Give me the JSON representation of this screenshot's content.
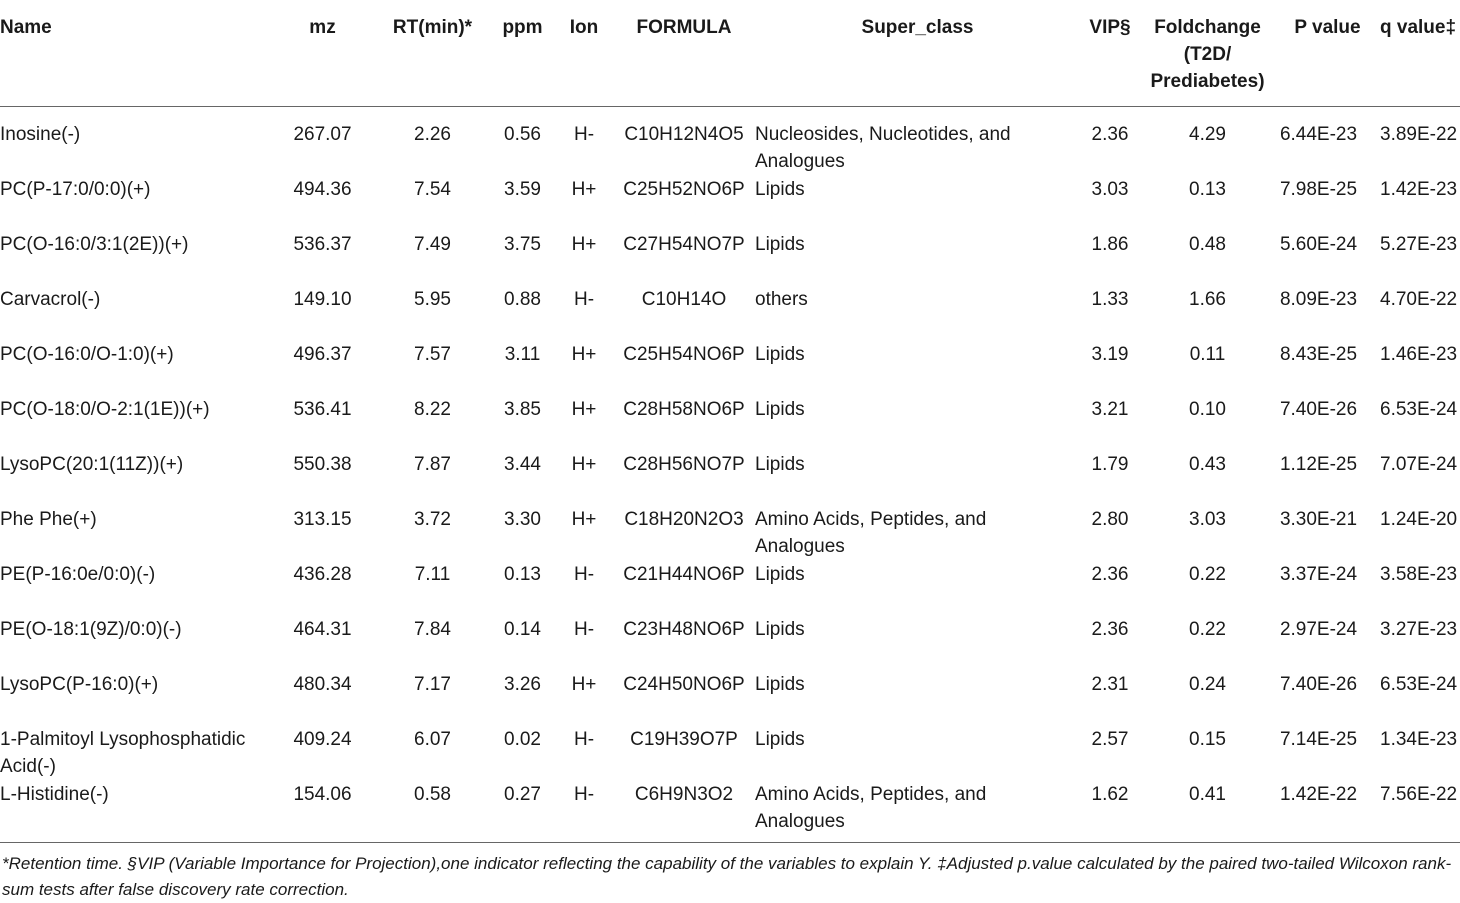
{
  "table": {
    "headers": {
      "name": "Name",
      "mz": "mz",
      "rt": "RT(min)*",
      "ppm": "ppm",
      "ion": "Ion",
      "formula": "FORMULA",
      "super_class": "Super_class",
      "vip": "VIP§",
      "foldchange": "Foldchange (T2D/ Prediabetes)",
      "p_value": "P value",
      "q_value": "q value‡"
    },
    "rows": [
      {
        "name": "Inosine(-)",
        "mz": "267.07",
        "rt": "2.26",
        "ppm": "0.56",
        "ion": "H-",
        "formula": "C10H12N4O5",
        "super_class": "Nucleosides, Nucleotides, and Analogues",
        "vip": "2.36",
        "foldchange": "4.29",
        "p_value": "6.44E-23",
        "q_value": "3.89E-22"
      },
      {
        "name": "PC(P-17:0/0:0)(+)",
        "mz": "494.36",
        "rt": "7.54",
        "ppm": "3.59",
        "ion": "H+",
        "formula": "C25H52NO6P",
        "super_class": "Lipids",
        "vip": "3.03",
        "foldchange": "0.13",
        "p_value": "7.98E-25",
        "q_value": "1.42E-23"
      },
      {
        "name": "PC(O-16:0/3:1(2E))(+)",
        "mz": "536.37",
        "rt": "7.49",
        "ppm": "3.75",
        "ion": "H+",
        "formula": "C27H54NO7P",
        "super_class": "Lipids",
        "vip": "1.86",
        "foldchange": "0.48",
        "p_value": "5.60E-24",
        "q_value": "5.27E-23"
      },
      {
        "name": "Carvacrol(-)",
        "mz": "149.10",
        "rt": "5.95",
        "ppm": "0.88",
        "ion": "H-",
        "formula": "C10H14O",
        "super_class": "others",
        "vip": "1.33",
        "foldchange": "1.66",
        "p_value": "8.09E-23",
        "q_value": "4.70E-22"
      },
      {
        "name": "PC(O-16:0/O-1:0)(+)",
        "mz": "496.37",
        "rt": "7.57",
        "ppm": "3.11",
        "ion": "H+",
        "formula": "C25H54NO6P",
        "super_class": "Lipids",
        "vip": "3.19",
        "foldchange": "0.11",
        "p_value": "8.43E-25",
        "q_value": "1.46E-23"
      },
      {
        "name": "PC(O-18:0/O-2:1(1E))(+)",
        "mz": "536.41",
        "rt": "8.22",
        "ppm": "3.85",
        "ion": "H+",
        "formula": "C28H58NO6P",
        "super_class": "Lipids",
        "vip": "3.21",
        "foldchange": "0.10",
        "p_value": "7.40E-26",
        "q_value": "6.53E-24"
      },
      {
        "name": "LysoPC(20:1(11Z))(+)",
        "mz": "550.38",
        "rt": "7.87",
        "ppm": "3.44",
        "ion": "H+",
        "formula": "C28H56NO7P",
        "super_class": "Lipids",
        "vip": "1.79",
        "foldchange": "0.43",
        "p_value": "1.12E-25",
        "q_value": "7.07E-24"
      },
      {
        "name": "Phe Phe(+)",
        "mz": "313.15",
        "rt": "3.72",
        "ppm": "3.30",
        "ion": "H+",
        "formula": "C18H20N2O3",
        "super_class": "Amino Acids, Peptides, and Analogues",
        "vip": "2.80",
        "foldchange": "3.03",
        "p_value": "3.30E-21",
        "q_value": "1.24E-20"
      },
      {
        "name": "PE(P-16:0e/0:0)(-)",
        "mz": "436.28",
        "rt": "7.11",
        "ppm": "0.13",
        "ion": "H-",
        "formula": "C21H44NO6P",
        "super_class": "Lipids",
        "vip": "2.36",
        "foldchange": "0.22",
        "p_value": "3.37E-24",
        "q_value": "3.58E-23"
      },
      {
        "name": "PE(O-18:1(9Z)/0:0)(-)",
        "mz": "464.31",
        "rt": "7.84",
        "ppm": "0.14",
        "ion": "H-",
        "formula": "C23H48NO6P",
        "super_class": "Lipids",
        "vip": "2.36",
        "foldchange": "0.22",
        "p_value": "2.97E-24",
        "q_value": "3.27E-23"
      },
      {
        "name": "LysoPC(P-16:0)(+)",
        "mz": "480.34",
        "rt": "7.17",
        "ppm": "3.26",
        "ion": "H+",
        "formula": "C24H50NO6P",
        "super_class": "Lipids",
        "vip": "2.31",
        "foldchange": "0.24",
        "p_value": "7.40E-26",
        "q_value": "6.53E-24"
      },
      {
        "name": "1-Palmitoyl Lysophosphatidic Acid(-)",
        "mz": "409.24",
        "rt": "6.07",
        "ppm": "0.02",
        "ion": "H-",
        "formula": "C19H39O7P",
        "super_class": "Lipids",
        "vip": "2.57",
        "foldchange": "0.15",
        "p_value": "7.14E-25",
        "q_value": "1.34E-23"
      },
      {
        "name": "L-Histidine(-)",
        "mz": "154.06",
        "rt": "0.58",
        "ppm": "0.27",
        "ion": "H-",
        "formula": "C6H9N3O2",
        "super_class": "Amino Acids, Peptides, and Analogues",
        "vip": "1.62",
        "foldchange": "0.41",
        "p_value": "1.42E-22",
        "q_value": "7.56E-22"
      }
    ]
  },
  "footnote": "*Retention time. §VIP (Variable Importance for Projection),one indicator reflecting the capability of the variables to explain Y. ‡Adjusted p.value calculated by the paired two-tailed Wilcoxon rank-sum tests after false discovery rate correction."
}
